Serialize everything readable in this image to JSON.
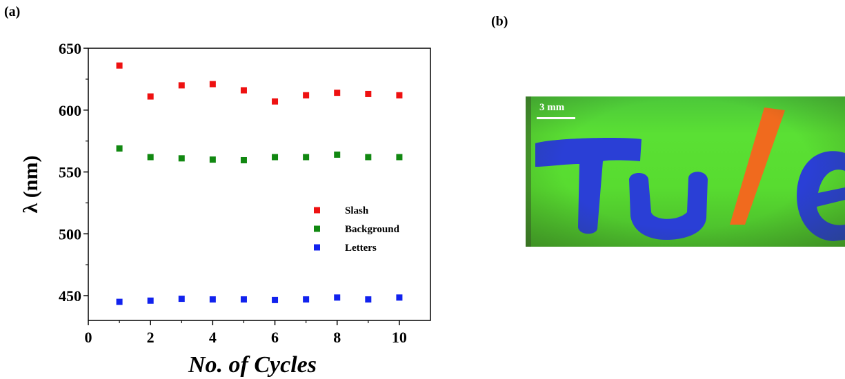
{
  "panels": {
    "a_label": "(a)",
    "b_label": "(b)"
  },
  "chart_data": {
    "type": "scatter",
    "xlabel": "No. of Cycles",
    "ylabel": "λ (nm)",
    "xlim": [
      0,
      11
    ],
    "ylim": [
      430,
      650
    ],
    "xticks": [
      0,
      2,
      4,
      6,
      8,
      10
    ],
    "yticks": [
      450,
      500,
      550,
      600,
      650
    ],
    "grid": false,
    "legend_position": "right",
    "x": [
      1,
      2,
      3,
      4,
      5,
      6,
      7,
      8,
      9,
      10
    ],
    "series": [
      {
        "name": "Slash",
        "color": "#ee1111",
        "values": [
          636,
          611,
          620,
          621,
          616,
          607,
          612,
          614,
          613,
          612
        ]
      },
      {
        "name": "Background",
        "color": "#118811",
        "values": [
          569,
          562,
          561,
          560,
          559.5,
          562,
          562,
          564,
          562,
          562
        ]
      },
      {
        "name": "Letters",
        "color": "#1122ee",
        "values": [
          445,
          446,
          447.5,
          447,
          447,
          446.5,
          447,
          448.5,
          447,
          448.5
        ]
      }
    ]
  },
  "photo": {
    "scale_label": "3 mm",
    "letters_text": "TU",
    "slash_text": "/",
    "e_text": "e",
    "letters_color": "#2a3fd6",
    "slash_color": "#f06a1e",
    "background_color": "#55d832"
  }
}
